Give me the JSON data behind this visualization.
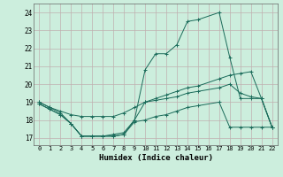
{
  "xlabel": "Humidex (Indice chaleur)",
  "bg_color": "#cceedd",
  "grid_color": "#c0b0b0",
  "line_color": "#1a6b5a",
  "xlim": [
    -0.5,
    22.5
  ],
  "ylim": [
    16.6,
    24.5
  ],
  "yticks": [
    17,
    18,
    19,
    20,
    21,
    22,
    23,
    24
  ],
  "xticks": [
    0,
    1,
    2,
    3,
    4,
    5,
    6,
    7,
    8,
    9,
    10,
    11,
    12,
    13,
    14,
    15,
    16,
    17,
    18,
    19,
    20,
    21,
    22
  ],
  "series": [
    {
      "x": [
        0,
        1,
        2,
        3,
        4,
        5,
        6,
        7,
        8,
        9,
        10,
        11,
        12,
        13,
        14,
        15,
        17,
        18,
        19,
        20,
        21,
        22
      ],
      "y": [
        18.9,
        18.6,
        18.3,
        17.8,
        17.1,
        17.1,
        17.1,
        17.1,
        17.2,
        17.9,
        18.0,
        18.2,
        18.3,
        18.5,
        18.7,
        18.8,
        19.0,
        17.6,
        17.6,
        17.6,
        17.6,
        17.6
      ]
    },
    {
      "x": [
        0,
        1,
        2,
        3,
        4,
        5,
        6,
        7,
        8,
        9,
        10,
        11,
        12,
        13,
        14,
        15,
        17,
        18,
        19,
        20,
        21,
        22
      ],
      "y": [
        19.0,
        18.7,
        18.5,
        18.3,
        18.2,
        18.2,
        18.2,
        18.2,
        18.4,
        18.7,
        19.0,
        19.1,
        19.2,
        19.3,
        19.5,
        19.6,
        19.8,
        20.0,
        19.5,
        19.3,
        19.2,
        17.6
      ]
    },
    {
      "x": [
        0,
        1,
        2,
        3,
        4,
        5,
        6,
        7,
        8,
        9,
        10,
        11,
        12,
        13,
        14,
        15,
        17,
        18,
        19,
        20,
        21,
        22
      ],
      "y": [
        19.0,
        18.7,
        18.4,
        17.8,
        17.1,
        17.1,
        17.1,
        17.2,
        17.3,
        18.0,
        19.0,
        19.2,
        19.4,
        19.6,
        19.8,
        19.9,
        20.3,
        20.5,
        20.6,
        20.7,
        19.2,
        17.6
      ]
    },
    {
      "x": [
        0,
        1,
        2,
        3,
        4,
        5,
        6,
        7,
        8,
        9,
        10,
        11,
        12,
        13,
        14,
        15,
        17,
        18,
        19,
        20,
        21,
        22
      ],
      "y": [
        18.9,
        18.6,
        18.3,
        17.8,
        17.1,
        17.1,
        17.1,
        17.1,
        17.2,
        18.0,
        20.8,
        21.7,
        21.7,
        22.2,
        23.5,
        23.6,
        24.0,
        21.5,
        19.2,
        19.2,
        19.2,
        17.6
      ]
    }
  ]
}
